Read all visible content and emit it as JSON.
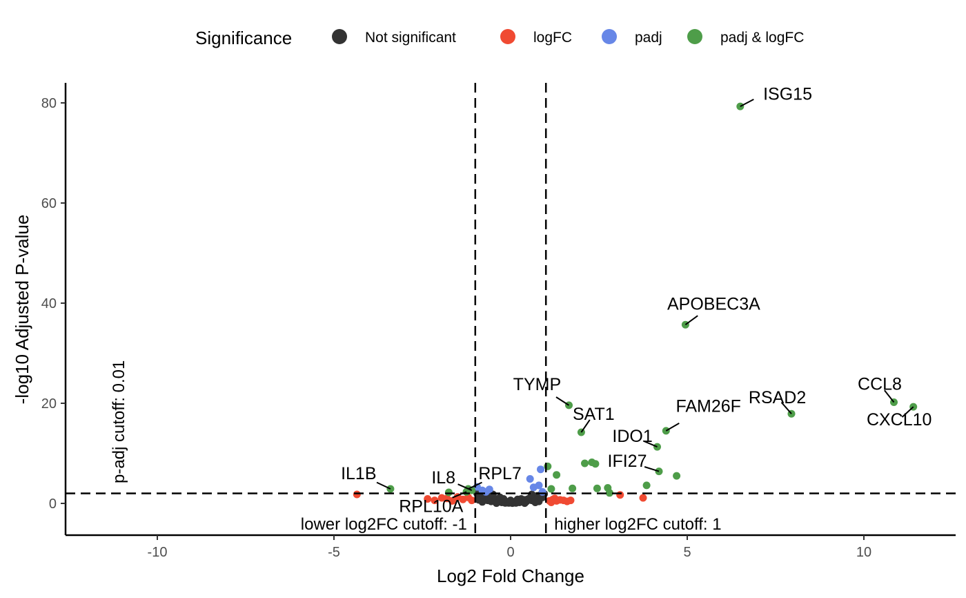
{
  "chart_data": {
    "type": "scatter",
    "title": "",
    "xlabel": "Log2 Fold Change",
    "ylabel": "-log10 Adjusted P-value",
    "xlim": [
      -12.6,
      12.6
    ],
    "ylim": [
      -6.3,
      84.5
    ],
    "x_ticks": [
      -10,
      -5,
      0,
      5,
      10
    ],
    "y_ticks": [
      0,
      20,
      40,
      60,
      80
    ],
    "grid": false,
    "legend": {
      "title": "Significance",
      "position": "top",
      "entries": [
        {
          "name": "Not significant",
          "color": "#333333"
        },
        {
          "name": "logFC",
          "color": "#F04A32"
        },
        {
          "name": "padj",
          "color": "#6787E7"
        },
        {
          "name": "padj & logFC",
          "color": "#4E9D49"
        }
      ]
    },
    "cutoffs": {
      "padj_y": 2,
      "lower_log2fc": -1,
      "higher_log2fc": 1,
      "padj_label": "p-adj cutoff: 0.01",
      "lower_label": "lower log2FC cutoff: -1",
      "higher_label": "higher log2FC cutoff: 1"
    },
    "series": [
      {
        "name": "Not significant",
        "color": "#333333",
        "points": [
          [
            -0.95,
            2.0
          ],
          [
            -0.85,
            1.6
          ],
          [
            -0.8,
            1.2
          ],
          [
            -0.75,
            0.9
          ],
          [
            -0.7,
            1.4
          ],
          [
            -0.65,
            0.6
          ],
          [
            -0.6,
            1.0
          ],
          [
            -0.55,
            0.4
          ],
          [
            -0.5,
            1.8
          ],
          [
            -0.45,
            0.5
          ],
          [
            -0.4,
            0.8
          ],
          [
            -0.35,
            0.3
          ],
          [
            -0.3,
            0.6
          ],
          [
            -0.25,
            0.2
          ],
          [
            -0.2,
            0.5
          ],
          [
            -0.15,
            0.1
          ],
          [
            -0.1,
            0.3
          ],
          [
            -0.05,
            0.1
          ],
          [
            0.0,
            0.2
          ],
          [
            0.05,
            0.05
          ],
          [
            0.1,
            0.3
          ],
          [
            0.15,
            0.1
          ],
          [
            0.2,
            0.4
          ],
          [
            0.25,
            0.2
          ],
          [
            0.3,
            0.5
          ],
          [
            0.35,
            0.3
          ],
          [
            0.4,
            0.7
          ],
          [
            0.45,
            0.4
          ],
          [
            0.5,
            0.9
          ],
          [
            0.55,
            1.1
          ],
          [
            0.6,
            0.6
          ],
          [
            0.65,
            1.3
          ],
          [
            0.7,
            0.9
          ],
          [
            0.75,
            1.5
          ],
          [
            0.8,
            1.1
          ],
          [
            0.85,
            1.7
          ],
          [
            0.9,
            1.2
          ],
          [
            0.95,
            1.9
          ],
          [
            -0.9,
            0.7
          ],
          [
            -0.6,
            1.6
          ],
          [
            -0.3,
            1.2
          ],
          [
            0.0,
            0.6
          ],
          [
            0.3,
            0.9
          ],
          [
            0.6,
            1.8
          ],
          [
            -0.8,
            0.3
          ],
          [
            0.8,
            0.4
          ],
          [
            -0.4,
            0.05
          ],
          [
            0.4,
            0.05
          ],
          [
            -0.2,
            0.9
          ],
          [
            0.2,
            0.8
          ],
          [
            -0.7,
            1.9
          ],
          [
            0.7,
            0.2
          ]
        ]
      },
      {
        "name": "logFC",
        "color": "#F04A32",
        "points": [
          [
            -4.35,
            1.8
          ],
          [
            -2.35,
            0.9
          ],
          [
            -2.15,
            0.6
          ],
          [
            -1.95,
            1.1
          ],
          [
            -1.8,
            1.0
          ],
          [
            -1.65,
            0.5
          ],
          [
            -1.5,
            1.3
          ],
          [
            -1.35,
            0.8
          ],
          [
            -1.2,
            1.2
          ],
          [
            -1.1,
            0.6
          ],
          [
            1.1,
            0.5
          ],
          [
            1.2,
            0.8
          ],
          [
            1.3,
            0.5
          ],
          [
            1.4,
            0.7
          ],
          [
            1.5,
            0.6
          ],
          [
            1.6,
            0.4
          ],
          [
            1.7,
            0.6
          ],
          [
            1.15,
            0.2
          ],
          [
            1.25,
            1.0
          ],
          [
            3.1,
            1.7
          ],
          [
            3.75,
            1.1
          ]
        ]
      },
      {
        "name": "padj",
        "color": "#6787E7",
        "points": [
          [
            -0.95,
            3.3
          ],
          [
            -0.8,
            2.6
          ],
          [
            -0.7,
            2.3
          ],
          [
            -0.6,
            2.8
          ],
          [
            0.55,
            4.9
          ],
          [
            0.65,
            3.2
          ],
          [
            0.8,
            3.6
          ],
          [
            0.85,
            6.8
          ],
          [
            0.9,
            2.3
          ]
        ]
      },
      {
        "name": "padj & logFC",
        "color": "#4E9D49",
        "points": [
          [
            6.5,
            79.3
          ],
          [
            4.95,
            35.7
          ],
          [
            11.4,
            19.3
          ],
          [
            10.85,
            20.2
          ],
          [
            7.95,
            17.9
          ],
          [
            1.65,
            19.6
          ],
          [
            2.0,
            14.2
          ],
          [
            4.4,
            14.5
          ],
          [
            4.15,
            11.3
          ],
          [
            4.2,
            6.4
          ],
          [
            4.7,
            5.5
          ],
          [
            3.85,
            3.6
          ],
          [
            1.05,
            7.4
          ],
          [
            1.3,
            5.7
          ],
          [
            2.1,
            8.0
          ],
          [
            2.3,
            8.2
          ],
          [
            2.4,
            7.9
          ],
          [
            1.75,
            3.0
          ],
          [
            1.15,
            2.9
          ],
          [
            2.45,
            3.0
          ],
          [
            2.75,
            3.1
          ],
          [
            2.8,
            2.1
          ],
          [
            -3.4,
            2.9
          ],
          [
            -1.75,
            2.2
          ],
          [
            -1.2,
            2.9
          ],
          [
            -1.25,
            2.3
          ],
          [
            -1.1,
            2.6
          ]
        ]
      }
    ],
    "labels": [
      {
        "text": "ISG15",
        "point": [
          6.5,
          79.3
        ],
        "pos": [
          7.15,
          80.6
        ],
        "anchor": "start"
      },
      {
        "text": "APOBEC3A",
        "point": [
          4.95,
          35.7
        ],
        "pos": [
          5.75,
          38.7
        ],
        "anchor": "middle"
      },
      {
        "text": "CCL8",
        "point": [
          10.85,
          20.2
        ],
        "pos": [
          10.45,
          22.7
        ],
        "anchor": "middle"
      },
      {
        "text": "CXCL10",
        "point": [
          11.4,
          19.3
        ],
        "pos": [
          11.0,
          15.6
        ],
        "anchor": "middle"
      },
      {
        "text": "RSAD2",
        "point": [
          7.95,
          17.9
        ],
        "pos": [
          7.55,
          20.0
        ],
        "anchor": "middle"
      },
      {
        "text": "TYMP",
        "point": [
          1.65,
          19.6
        ],
        "pos": [
          0.75,
          22.6
        ],
        "anchor": "middle"
      },
      {
        "text": "SAT1",
        "point": [
          2.0,
          14.2
        ],
        "pos": [
          2.35,
          16.7
        ],
        "anchor": "middle"
      },
      {
        "text": "FAM26F",
        "point": [
          4.4,
          14.5
        ],
        "pos": [
          5.6,
          18.3
        ],
        "anchor": "middle"
      },
      {
        "text": "IDO1",
        "point": [
          4.15,
          11.3
        ],
        "pos": [
          3.45,
          12.3
        ],
        "anchor": "middle"
      },
      {
        "text": "IFI27",
        "point": [
          4.2,
          6.4
        ],
        "pos": [
          3.3,
          7.3
        ],
        "anchor": "middle"
      },
      {
        "text": "IL1B",
        "point": [
          -3.4,
          2.9
        ],
        "pos": [
          -4.3,
          4.8
        ],
        "anchor": "middle"
      },
      {
        "text": "IL8",
        "point": [
          -1.1,
          2.6
        ],
        "pos": [
          -1.9,
          4.0
        ],
        "anchor": "middle"
      },
      {
        "text": "RPL7",
        "point": [
          -1.2,
          2.9
        ],
        "pos": [
          -0.3,
          4.8
        ],
        "anchor": "middle"
      },
      {
        "text": "RPL10A",
        "point": [
          -1.25,
          2.3
        ],
        "pos": [
          -2.25,
          -1.7
        ],
        "anchor": "middle"
      }
    ]
  }
}
